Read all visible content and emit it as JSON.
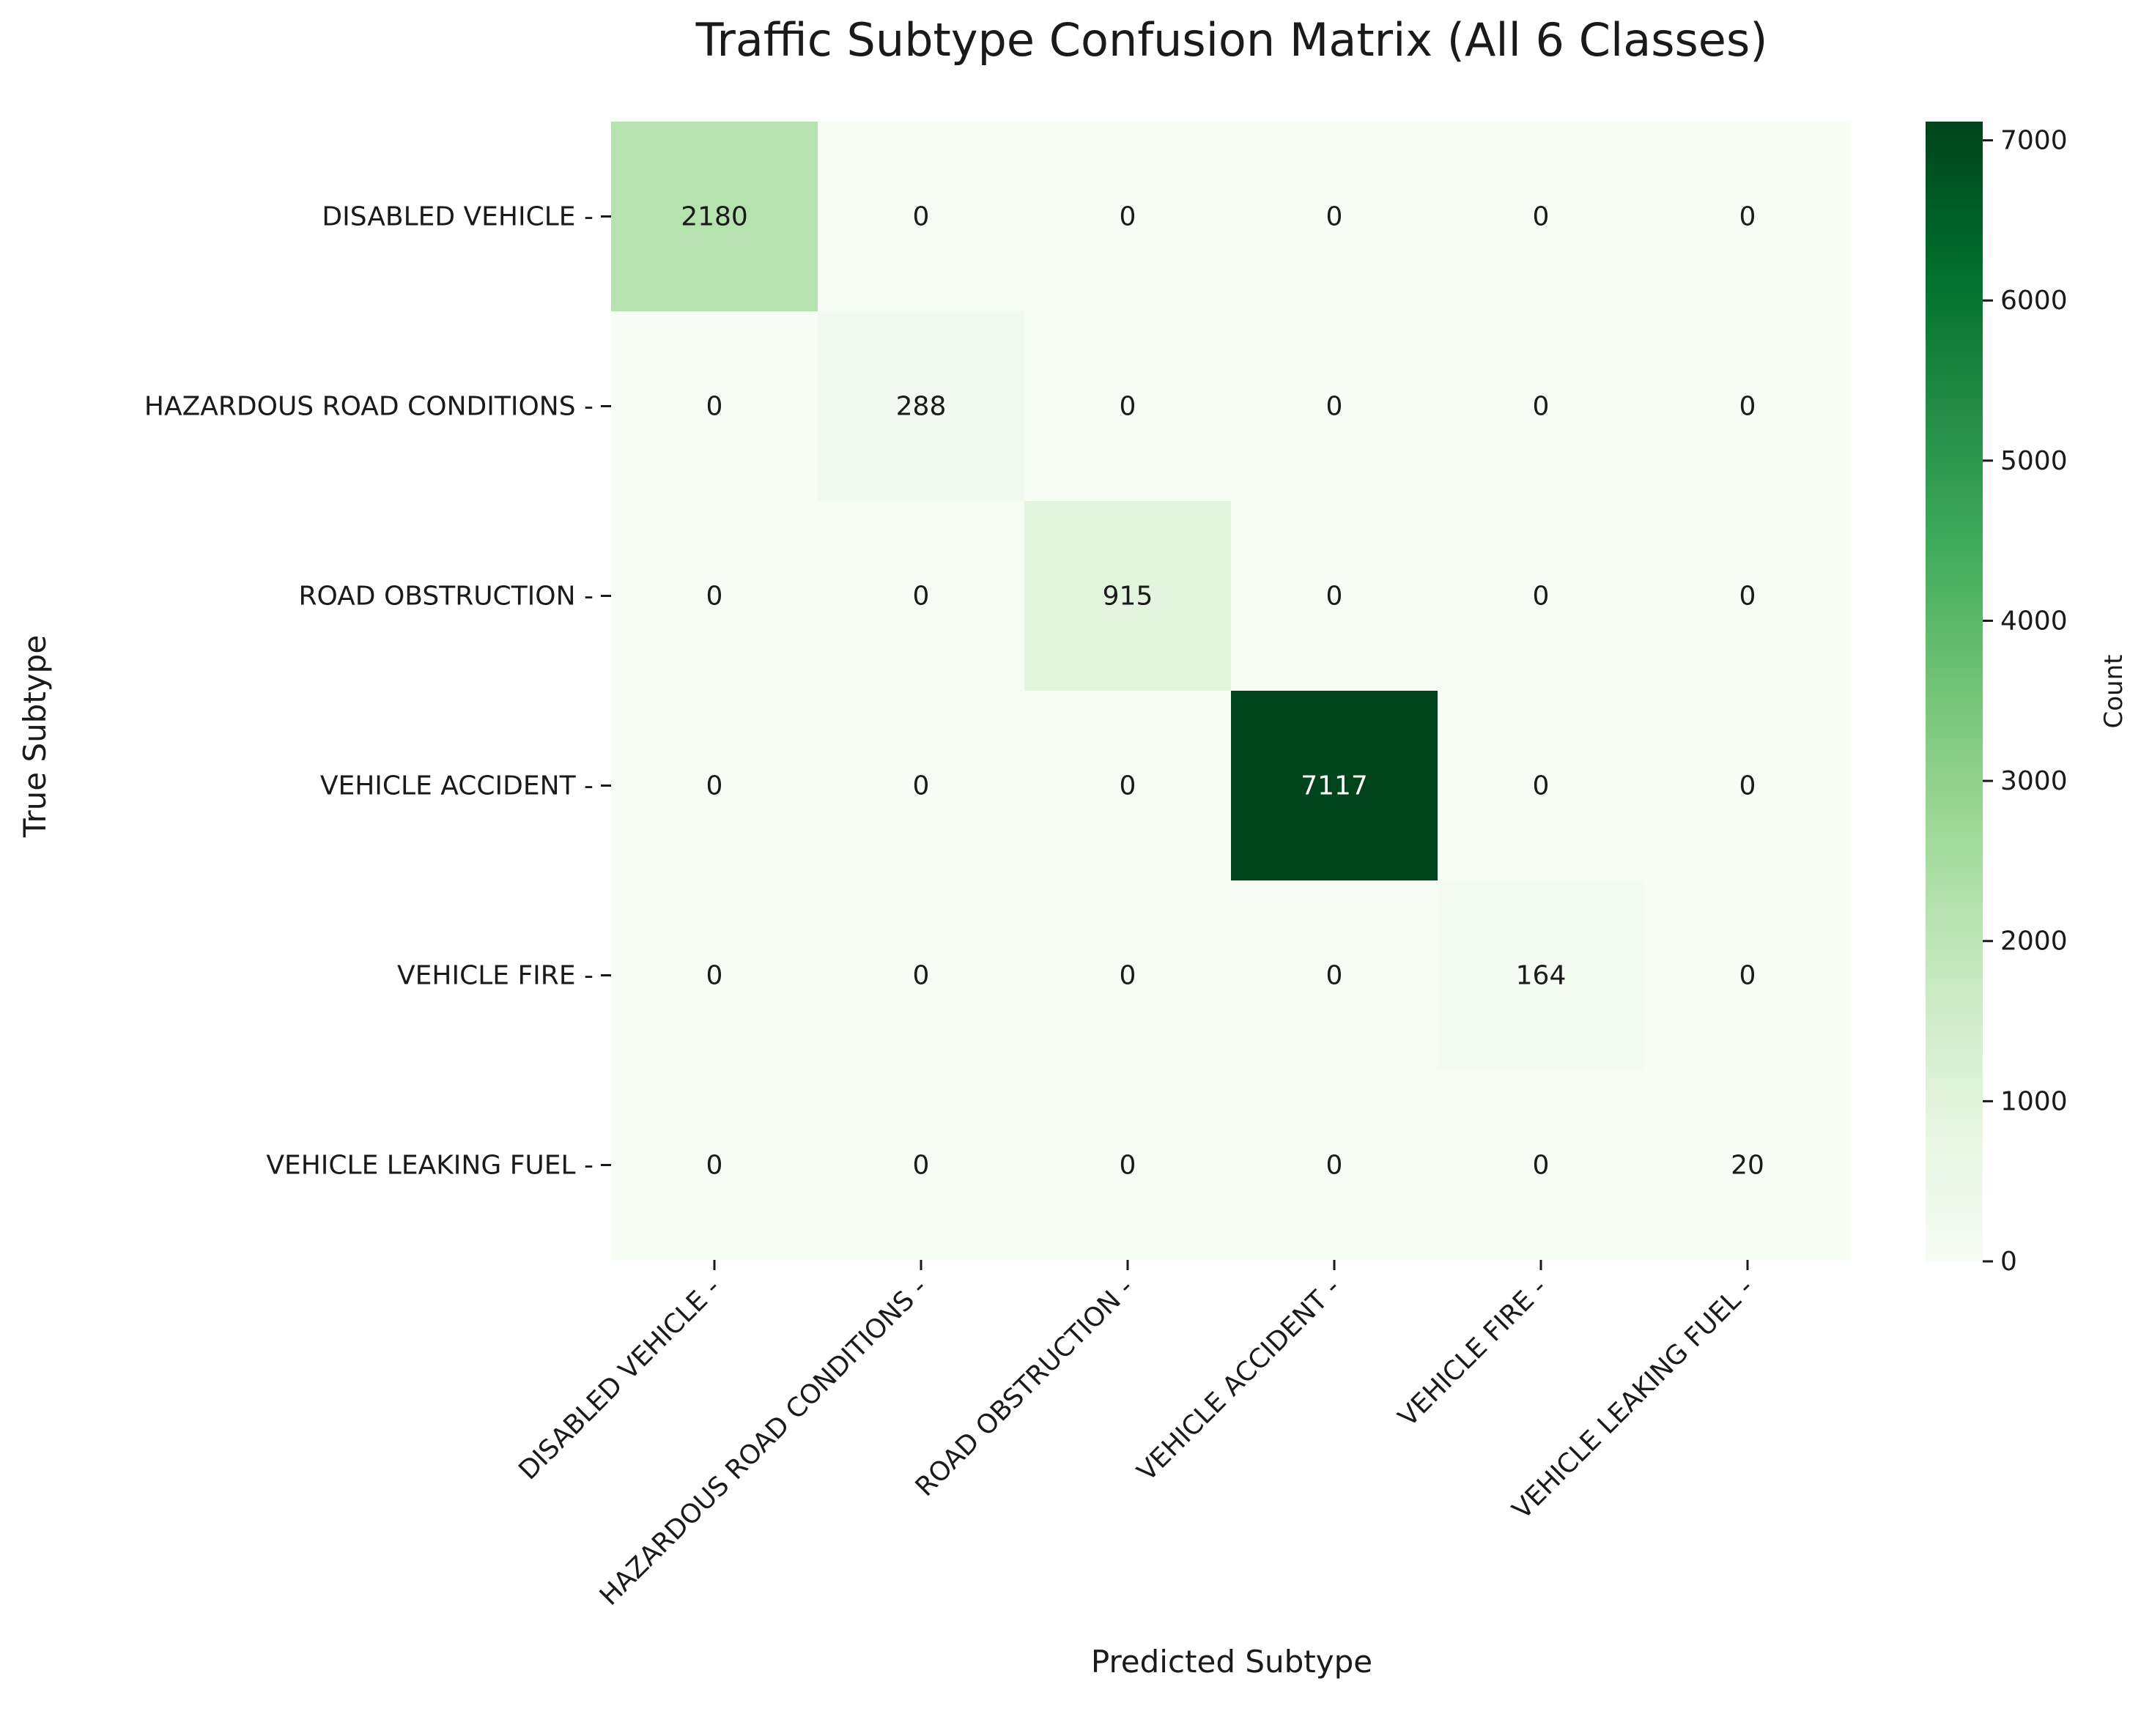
{
  "chart_data": {
    "type": "heatmap",
    "title": "Traffic Subtype Confusion Matrix (All 6 Classes)",
    "xlabel": "Predicted Subtype",
    "ylabel": "True Subtype",
    "x_categories": [
      "DISABLED VEHICLE -",
      "HAZARDOUS ROAD CONDITIONS -",
      "ROAD OBSTRUCTION -",
      "VEHICLE ACCIDENT -",
      "VEHICLE FIRE -",
      "VEHICLE LEAKING FUEL -"
    ],
    "y_categories": [
      "DISABLED VEHICLE -",
      "HAZARDOUS ROAD CONDITIONS -",
      "ROAD OBSTRUCTION -",
      "VEHICLE ACCIDENT -",
      "VEHICLE FIRE -",
      "VEHICLE LEAKING FUEL -"
    ],
    "matrix": [
      [
        2180,
        0,
        0,
        0,
        0,
        0
      ],
      [
        0,
        288,
        0,
        0,
        0,
        0
      ],
      [
        0,
        0,
        915,
        0,
        0,
        0
      ],
      [
        0,
        0,
        0,
        7117,
        0,
        0
      ],
      [
        0,
        0,
        0,
        0,
        164,
        0
      ],
      [
        0,
        0,
        0,
        0,
        0,
        20
      ]
    ],
    "colorbar": {
      "label": "Count",
      "range": [
        0,
        7117
      ],
      "ticks": [
        0,
        1000,
        2000,
        3000,
        4000,
        5000,
        6000,
        7000
      ],
      "colormap": "Greens",
      "colors": [
        "#f7fcf5",
        "#e5f5e0",
        "#c7e9c0",
        "#a1d99b",
        "#74c476",
        "#41ab5d",
        "#238b45",
        "#006d2c",
        "#00441b"
      ]
    }
  }
}
